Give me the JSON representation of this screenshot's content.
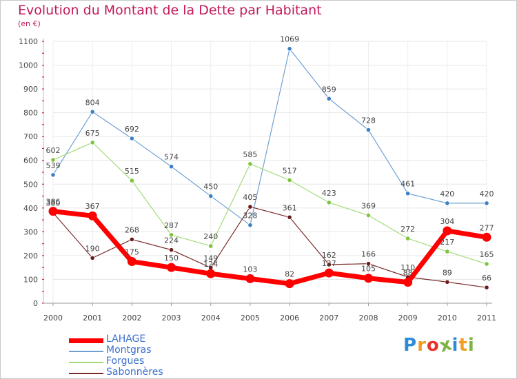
{
  "header": {
    "title": "Evolution du Montant de la Dette par Habitant",
    "unit": "(en €)"
  },
  "brand": {
    "letters": [
      "P",
      "r",
      "o",
      "x",
      "i",
      "t",
      "i"
    ],
    "colors": [
      "#2e8bd8",
      "#f0a020",
      "#e8342a",
      "#7cb342",
      "#2e8bd8",
      "#f0a020",
      "#7cb342"
    ]
  },
  "chart_data": {
    "type": "line",
    "title": "Evolution du Montant de la Dette par Habitant",
    "ylabel": "(en €)",
    "ylim": [
      0,
      1100
    ],
    "yticks": [
      0,
      100,
      200,
      300,
      400,
      500,
      600,
      700,
      800,
      900,
      1000,
      1100
    ],
    "x": [
      "2000",
      "2001",
      "2002",
      "2003",
      "2004",
      "2005",
      "2006",
      "2007",
      "2008",
      "2009",
      "2010",
      "2011"
    ],
    "legend_position": "bottom-left",
    "series": [
      {
        "name": "Montgras",
        "color": "#6fa0d2",
        "point_color": "#3f7fc4",
        "width": 1.2,
        "radius": 3.2,
        "values": [
          539,
          804,
          692,
          574,
          450,
          328,
          1069,
          859,
          728,
          461,
          420,
          420
        ],
        "labels": [
          "539",
          "804",
          "692",
          "574",
          "450",
          "328",
          "1069",
          "859",
          "728",
          "461",
          "420",
          "420"
        ]
      },
      {
        "name": "Forgues",
        "color": "#a2dc7a",
        "point_color": "#7cc43c",
        "width": 1.2,
        "radius": 3.2,
        "values": [
          602,
          675,
          515,
          287,
          240,
          585,
          517,
          423,
          369,
          272,
          217,
          165
        ],
        "labels": [
          "602",
          "675",
          "515",
          "287",
          "240",
          "585",
          "517",
          "423",
          "369",
          "272",
          "217",
          "165"
        ]
      },
      {
        "name": "Sabonnères",
        "color": "#7a2a2a",
        "point_color": "#6a1a1a",
        "width": 1.2,
        "radius": 3.2,
        "values": [
          380,
          190,
          268,
          224,
          149,
          405,
          361,
          162,
          166,
          110,
          89,
          66
        ],
        "labels": [
          "380",
          "190",
          "268",
          "224",
          "149",
          "405",
          "361",
          "162",
          "166",
          "110",
          "89",
          "66"
        ]
      },
      {
        "name": "LAHAGE",
        "color": "#ff0000",
        "point_color": "#ff0000",
        "width": 7,
        "radius": 6.5,
        "values": [
          386,
          367,
          175,
          150,
          124,
          103,
          82,
          127,
          105,
          88,
          304,
          277
        ],
        "labels": [
          "386",
          "367",
          "175",
          "150",
          "124",
          "103",
          "82",
          "127",
          "105",
          "88",
          "304",
          "277"
        ]
      }
    ]
  }
}
